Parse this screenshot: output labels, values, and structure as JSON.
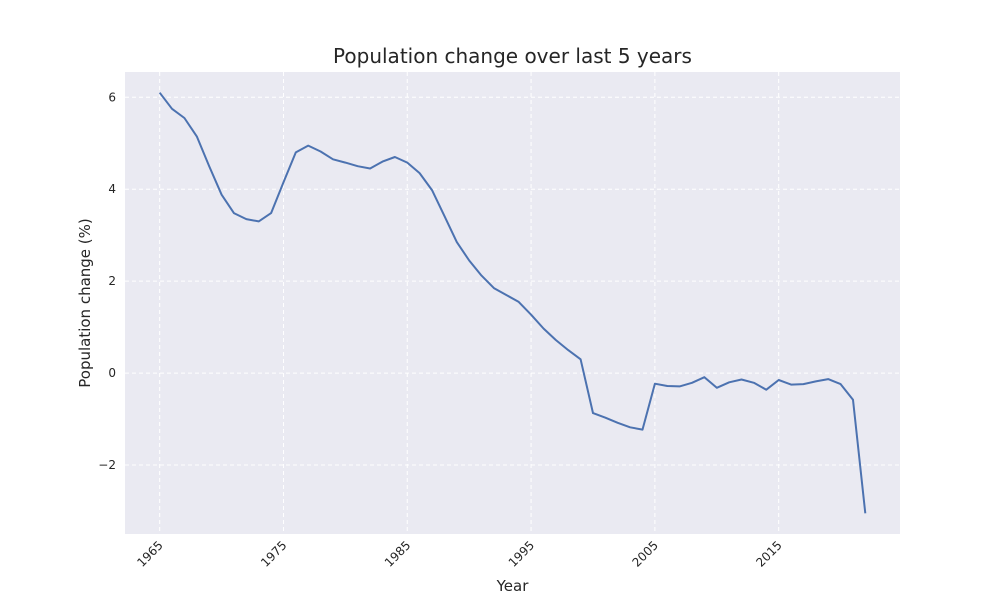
{
  "chart_data": {
    "type": "line",
    "title": "Population change over last 5 years",
    "xlabel": "Year",
    "ylabel": "Population change (%)",
    "xlim": [
      1962.2,
      2024.8
    ],
    "ylim": [
      -3.5,
      6.55
    ],
    "xticks": [
      1965,
      1975,
      1985,
      1995,
      2005,
      2015
    ],
    "xtick_labels": [
      "1965",
      "1975",
      "1985",
      "1995",
      "2005",
      "2015"
    ],
    "yticks": [
      6,
      4,
      2,
      0,
      -2
    ],
    "ytick_labels": [
      "6",
      "4",
      "2",
      "0",
      "−2"
    ],
    "grid": true,
    "series": [
      {
        "color": "#4c72b0",
        "x": [
          1965,
          1966,
          1967,
          1968,
          1969,
          1970,
          1971,
          1972,
          1973,
          1974,
          1975,
          1976,
          1977,
          1978,
          1979,
          1980,
          1981,
          1982,
          1983,
          1984,
          1985,
          1986,
          1987,
          1988,
          1989,
          1990,
          1991,
          1992,
          1993,
          1994,
          1995,
          1996,
          1997,
          1998,
          1999,
          2000,
          2001,
          2002,
          2003,
          2004,
          2005,
          2006,
          2007,
          2008,
          2009,
          2010,
          2011,
          2012,
          2013,
          2014,
          2015,
          2016,
          2017,
          2018,
          2019,
          2020,
          2021,
          2022
        ],
        "y": [
          6.1,
          5.75,
          5.55,
          5.15,
          4.5,
          3.88,
          3.48,
          3.35,
          3.3,
          3.48,
          4.15,
          4.8,
          4.95,
          4.82,
          4.65,
          4.58,
          4.5,
          4.45,
          4.6,
          4.7,
          4.58,
          4.35,
          3.98,
          3.42,
          2.85,
          2.45,
          2.12,
          1.85,
          1.7,
          1.55,
          1.27,
          0.97,
          0.72,
          0.5,
          0.3,
          -0.87,
          -0.97,
          -1.08,
          -1.18,
          -1.23,
          -0.23,
          -0.28,
          -0.29,
          -0.21,
          -0.09,
          -0.32,
          -0.2,
          -0.14,
          -0.21,
          -0.36,
          -0.15,
          -0.25,
          -0.24,
          -0.18,
          -0.13,
          -0.24,
          -0.58,
          -3.05
        ]
      }
    ]
  }
}
